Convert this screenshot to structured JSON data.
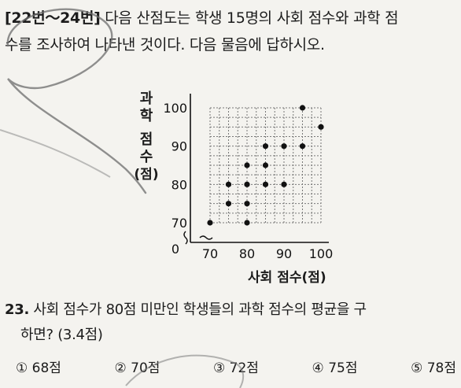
{
  "intro": {
    "bracket": "[22번～24번]",
    "line1_rest": " 다음 산점도는 학생 15명의 사회 점수와 과학 점",
    "line2": "수를 조사하여 나타낸 것이다. 다음 물음에 답하시오."
  },
  "chart": {
    "ylabel_chars": [
      "과",
      "학",
      "점",
      "수",
      "(점)"
    ],
    "xlabel": "사회 점수(점)",
    "origin_label": "0"
  },
  "chart_data": {
    "type": "scatter",
    "xlabel": "사회 점수(점)",
    "ylabel": "과학 점수(점)",
    "xlim": [
      70,
      100
    ],
    "ylim": [
      70,
      100
    ],
    "x_ticks": [
      "70",
      "80",
      "90",
      "100"
    ],
    "y_ticks": [
      "70",
      "80",
      "90",
      "100"
    ],
    "grid": true,
    "points": [
      {
        "x": 70,
        "y": 70
      },
      {
        "x": 75,
        "y": 75
      },
      {
        "x": 75,
        "y": 80
      },
      {
        "x": 80,
        "y": 70
      },
      {
        "x": 80,
        "y": 75
      },
      {
        "x": 80,
        "y": 80
      },
      {
        "x": 80,
        "y": 85
      },
      {
        "x": 85,
        "y": 80
      },
      {
        "x": 85,
        "y": 85
      },
      {
        "x": 85,
        "y": 90
      },
      {
        "x": 90,
        "y": 80
      },
      {
        "x": 90,
        "y": 90
      },
      {
        "x": 95,
        "y": 90
      },
      {
        "x": 95,
        "y": 100
      },
      {
        "x": 100,
        "y": 95
      }
    ]
  },
  "question": {
    "number": "23.",
    "line1_rest": " 사회 점수가 80점 미만인 학생들의 과학 점수의 평균을 구",
    "line2": "하면? (3.4점)"
  },
  "choices": [
    "① 68점",
    "② 70점",
    "③ 72점",
    "④ 75점",
    "⑤ 78점"
  ]
}
